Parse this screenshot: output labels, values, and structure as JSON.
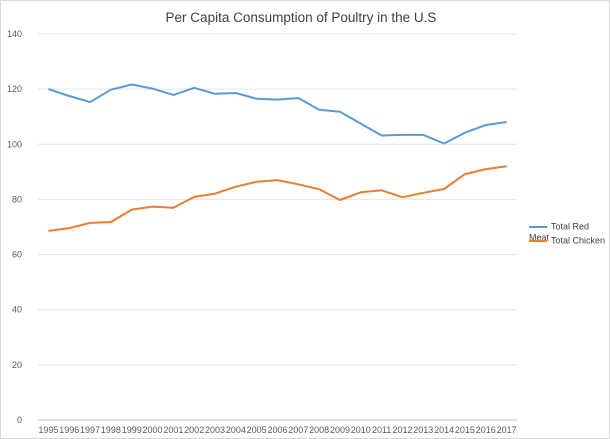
{
  "chart_data": {
    "type": "line",
    "title": "Per Capita Consumption of Poultry in the U.S",
    "xlabel": "",
    "ylabel": "",
    "categories": [
      "1995",
      "1996",
      "1997",
      "1998",
      "1999",
      "2000",
      "2001",
      "2002",
      "2003",
      "2004",
      "2005",
      "2006",
      "2007",
      "2008",
      "2009",
      "2010",
      "2011",
      "2012",
      "2013",
      "2014",
      "2015",
      "2016",
      "2017"
    ],
    "ylim": [
      0,
      140
    ],
    "yticks": [
      0,
      20,
      40,
      60,
      80,
      100,
      120,
      140
    ],
    "grid": true,
    "legend_position": "right",
    "series": [
      {
        "name": "Total Red Meat",
        "color": "#5b9bd5",
        "values": [
          120,
          117.5,
          115.3,
          119.8,
          121.7,
          120.2,
          117.9,
          120.5,
          118.3,
          118.6,
          116.5,
          116.2,
          116.8,
          112.5,
          111.8,
          107.5,
          103.2,
          103.4,
          103.4,
          100.3,
          104.2,
          107,
          108.1
        ]
      },
      {
        "name": "Total Chicken",
        "color": "#ed7d31",
        "values": [
          68.6,
          69.6,
          71.5,
          71.8,
          76.3,
          77.4,
          77,
          80.9,
          82.1,
          84.6,
          86.4,
          87,
          85.5,
          83.7,
          79.8,
          82.6,
          83.3,
          80.8,
          82.4,
          83.8,
          89.2,
          91,
          92
        ]
      }
    ]
  }
}
